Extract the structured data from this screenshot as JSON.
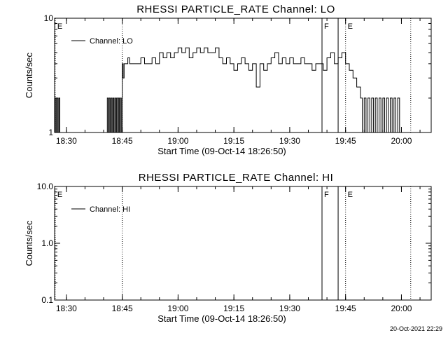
{
  "timestamp": "20-Oct-2021 22:29",
  "chart_data": [
    {
      "type": "line",
      "title": "RHESSI PARTICLE_RATE Channel: LO",
      "xlabel": "Start Time (09-Oct-14 18:26:50)",
      "ylabel": "Counts/sec",
      "yscale": "log",
      "ylim": [
        1,
        10
      ],
      "yticks": [
        {
          "value": 1,
          "label": "1"
        },
        {
          "value": 10,
          "label": "10"
        }
      ],
      "xlim": [
        "18:26:50",
        "20:08:00"
      ],
      "xticks": [
        "18:30",
        "18:45",
        "19:00",
        "19:15",
        "19:30",
        "19:45",
        "20:00"
      ],
      "grid": false,
      "legend": {
        "position": "top-left",
        "entries": [
          "Channel: LO"
        ]
      },
      "markers": [
        {
          "time": "18:27:00",
          "label": "E",
          "style": "dotted"
        },
        {
          "time": "18:45:00",
          "label": "",
          "style": "dotted"
        },
        {
          "time": "19:38:40",
          "label": "F",
          "style": "solid"
        },
        {
          "time": "19:43:00",
          "label": "",
          "style": "solid"
        },
        {
          "time": "19:45:00",
          "label": "E",
          "style": "dotted"
        },
        {
          "time": "20:02:30",
          "label": "",
          "style": "dotted"
        }
      ],
      "series": [
        {
          "points": [
            [
              "18:26:50",
              1.0
            ],
            [
              "18:27:00",
              2.0
            ],
            [
              "18:27:15",
              1.0
            ],
            [
              "18:27:30",
              2.0
            ],
            [
              "18:27:45",
              1.0
            ],
            [
              "18:28:00",
              2.0
            ],
            [
              "18:28:15",
              1.0
            ],
            [
              "18:40:45",
              1.0
            ],
            [
              "18:41:00",
              2.0
            ],
            [
              "18:41:15",
              1.0
            ],
            [
              "18:41:30",
              2.0
            ],
            [
              "18:41:45",
              1.0
            ],
            [
              "18:42:00",
              2.0
            ],
            [
              "18:42:15",
              1.0
            ],
            [
              "18:42:30",
              2.0
            ],
            [
              "18:42:45",
              1.0
            ],
            [
              "18:43:00",
              2.0
            ],
            [
              "18:43:15",
              1.0
            ],
            [
              "18:43:30",
              2.0
            ],
            [
              "18:43:45",
              1.0
            ],
            [
              "18:44:00",
              2.0
            ],
            [
              "18:44:15",
              1.0
            ],
            [
              "18:44:30",
              2.0
            ],
            [
              "18:44:45",
              1.0
            ],
            [
              "18:45:00",
              4.0
            ],
            [
              "18:45:15",
              3.0
            ],
            [
              "18:45:30",
              4.0
            ],
            [
              "18:46:00",
              4.0
            ],
            [
              "18:46:30",
              4.5
            ],
            [
              "18:47:00",
              4.0
            ],
            [
              "18:48:00",
              4.0
            ],
            [
              "18:49:00",
              4.0
            ],
            [
              "18:50:00",
              4.5
            ],
            [
              "18:51:00",
              4.0
            ],
            [
              "18:52:00",
              4.0
            ],
            [
              "18:53:00",
              4.5
            ],
            [
              "18:54:00",
              4.0
            ],
            [
              "18:55:00",
              5.0
            ],
            [
              "18:56:00",
              4.5
            ],
            [
              "18:57:00",
              5.0
            ],
            [
              "18:58:00",
              4.5
            ],
            [
              "18:59:00",
              5.0
            ],
            [
              "19:00:00",
              5.5
            ],
            [
              "19:01:00",
              5.0
            ],
            [
              "19:02:00",
              5.5
            ],
            [
              "19:03:00",
              4.5
            ],
            [
              "19:04:00",
              5.0
            ],
            [
              "19:05:00",
              5.5
            ],
            [
              "19:06:00",
              5.0
            ],
            [
              "19:07:00",
              5.5
            ],
            [
              "19:08:00",
              5.0
            ],
            [
              "19:09:00",
              5.0
            ],
            [
              "19:10:00",
              5.5
            ],
            [
              "19:11:00",
              4.5
            ],
            [
              "19:12:00",
              4.0
            ],
            [
              "19:13:00",
              4.5
            ],
            [
              "19:14:00",
              4.0
            ],
            [
              "19:15:00",
              3.5
            ],
            [
              "19:16:00",
              4.0
            ],
            [
              "19:17:00",
              4.5
            ],
            [
              "19:18:00",
              4.0
            ],
            [
              "19:19:00",
              3.5
            ],
            [
              "19:20:00",
              4.0
            ],
            [
              "19:21:00",
              2.5
            ],
            [
              "19:22:00",
              4.0
            ],
            [
              "19:23:00",
              3.5
            ],
            [
              "19:24:00",
              4.0
            ],
            [
              "19:25:00",
              4.5
            ],
            [
              "19:26:00",
              5.0
            ],
            [
              "19:27:00",
              4.0
            ],
            [
              "19:28:00",
              4.5
            ],
            [
              "19:29:00",
              4.0
            ],
            [
              "19:30:00",
              4.5
            ],
            [
              "19:31:00",
              4.0
            ],
            [
              "19:32:00",
              4.0
            ],
            [
              "19:33:00",
              4.5
            ],
            [
              "19:34:00",
              4.0
            ],
            [
              "19:35:00",
              4.0
            ],
            [
              "19:36:00",
              3.5
            ],
            [
              "19:37:00",
              4.0
            ],
            [
              "19:38:00",
              4.0
            ],
            [
              "19:39:00",
              3.5
            ],
            [
              "19:40:00",
              4.5
            ],
            [
              "19:41:00",
              5.0
            ],
            [
              "19:42:00",
              4.0
            ],
            [
              "19:43:00",
              4.5
            ],
            [
              "19:44:00",
              5.0
            ],
            [
              "19:45:00",
              4.0
            ],
            [
              "19:46:00",
              3.5
            ],
            [
              "19:47:00",
              3.0
            ],
            [
              "19:48:00",
              2.5
            ],
            [
              "19:49:00",
              2.0
            ],
            [
              "19:49:30",
              1.0
            ],
            [
              "19:50:00",
              2.0
            ],
            [
              "19:50:30",
              1.0
            ],
            [
              "19:51:00",
              2.0
            ],
            [
              "19:51:30",
              1.0
            ],
            [
              "19:52:00",
              2.0
            ],
            [
              "19:52:30",
              1.0
            ],
            [
              "19:53:00",
              2.0
            ],
            [
              "19:53:30",
              1.0
            ],
            [
              "19:54:00",
              2.0
            ],
            [
              "19:54:30",
              1.0
            ],
            [
              "19:55:00",
              2.0
            ],
            [
              "19:55:30",
              1.0
            ],
            [
              "19:56:00",
              2.0
            ],
            [
              "19:56:30",
              1.0
            ],
            [
              "19:57:00",
              2.0
            ],
            [
              "19:57:30",
              1.0
            ],
            [
              "19:58:00",
              2.0
            ],
            [
              "19:58:30",
              1.0
            ],
            [
              "19:59:00",
              2.0
            ],
            [
              "19:59:30",
              1.0
            ],
            [
              "20:00:00",
              1.0
            ]
          ]
        }
      ]
    },
    {
      "type": "line",
      "title": "RHESSI PARTICLE_RATE Channel: HI",
      "xlabel": "Start Time (09-Oct-14 18:26:50)",
      "ylabel": "Counts/sec",
      "yscale": "log",
      "ylim": [
        0.1,
        10
      ],
      "yticks": [
        {
          "value": 0.1,
          "label": "0.1"
        },
        {
          "value": 1,
          "label": "1.0"
        },
        {
          "value": 10,
          "label": "10.0"
        }
      ],
      "xlim": [
        "18:26:50",
        "20:08:00"
      ],
      "xticks": [
        "18:30",
        "18:45",
        "19:00",
        "19:15",
        "19:30",
        "19:45",
        "20:00"
      ],
      "grid": false,
      "legend": {
        "position": "top-left",
        "entries": [
          "Channel: HI"
        ]
      },
      "markers": [
        {
          "time": "18:27:00",
          "label": "E",
          "style": "dotted"
        },
        {
          "time": "18:45:00",
          "label": "",
          "style": "dotted"
        },
        {
          "time": "19:38:40",
          "label": "F",
          "style": "solid"
        },
        {
          "time": "19:43:00",
          "label": "",
          "style": "solid"
        },
        {
          "time": "19:45:00",
          "label": "E",
          "style": "dotted"
        },
        {
          "time": "20:02:30",
          "label": "",
          "style": "dotted"
        }
      ],
      "series": [
        {
          "points": []
        }
      ]
    }
  ]
}
